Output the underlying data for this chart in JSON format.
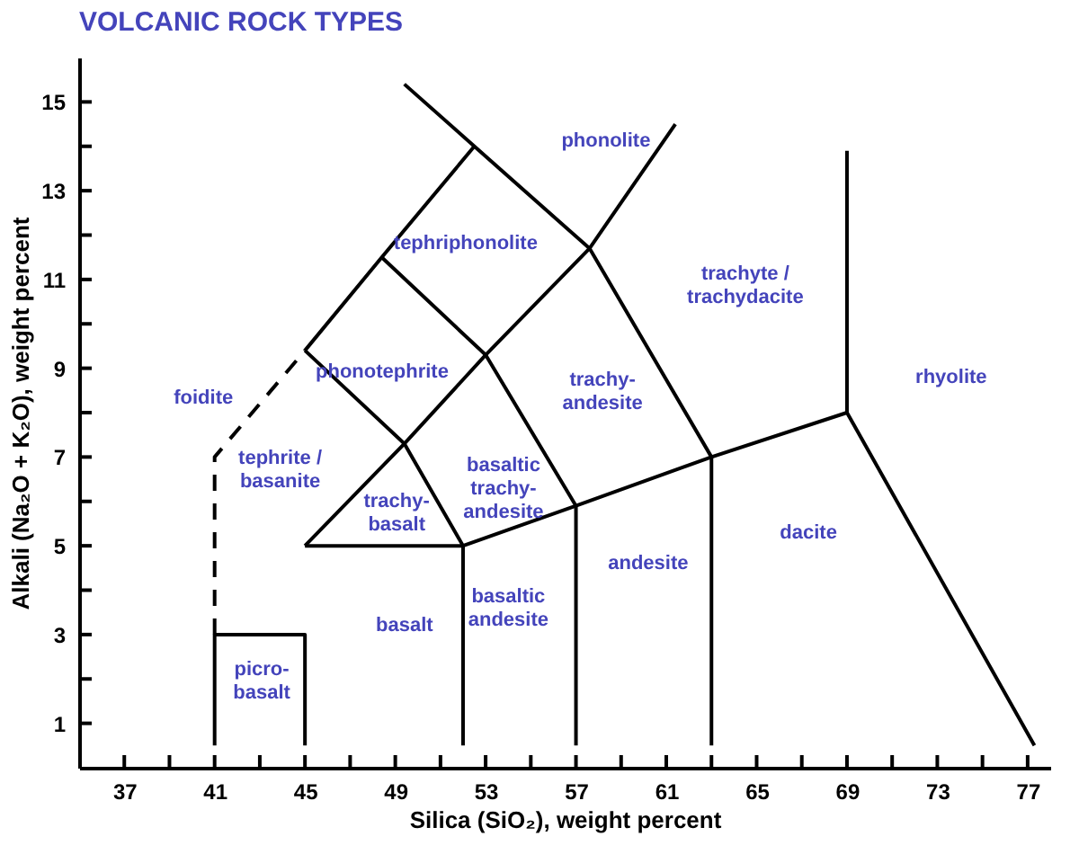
{
  "chart_data": {
    "type": "line",
    "title": "VOLCANIC ROCK TYPES",
    "xlabel": "Silica (SiO₂), weight percent",
    "ylabel": "Alkali (Na₂O + K₂O), weight percent",
    "xlim": [
      35,
      78
    ],
    "ylim": [
      0,
      16
    ],
    "xticks": [
      37,
      {
        "value": 39,
        "label": null
      },
      41,
      {
        "value": 43,
        "label": null
      },
      45,
      {
        "value": 47,
        "label": null
      },
      49,
      {
        "value": 51,
        "label": null
      },
      53,
      {
        "value": 55,
        "label": null
      },
      57,
      {
        "value": 59,
        "label": null
      },
      61,
      {
        "value": 63,
        "label": null
      },
      65,
      {
        "value": 67,
        "label": null
      },
      69,
      {
        "value": 71,
        "label": null
      },
      73,
      {
        "value": 75,
        "label": null
      },
      77
    ],
    "yticks": [
      1,
      {
        "value": 2,
        "label": null
      },
      3,
      {
        "value": 4,
        "label": null
      },
      5,
      {
        "value": 6,
        "label": null
      },
      7,
      {
        "value": 8,
        "label": null
      },
      9,
      {
        "value": 10,
        "label": null
      },
      11,
      {
        "value": 12,
        "label": null
      },
      13,
      {
        "value": 14,
        "label": null
      },
      15
    ],
    "grid": false,
    "marker": "none",
    "series": [
      {
        "color": "#000000",
        "line_style": "solid",
        "x": [
          41,
          41,
          45,
          45
        ],
        "values": [
          0.5,
          3,
          3,
          0.5
        ]
      },
      {
        "color": "#000000",
        "line_style": "dashed",
        "x": [
          41,
          41,
          45
        ],
        "values": [
          3,
          7,
          9.4
        ]
      },
      {
        "color": "#000000",
        "line_style": "solid",
        "x": [
          45,
          48.4,
          52.5
        ],
        "values": [
          9.4,
          11.5,
          14
        ]
      },
      {
        "color": "#000000",
        "line_style": "solid",
        "x": [
          49.4,
          52.5,
          57.6,
          61.4
        ],
        "values": [
          15.4,
          14,
          11.7,
          14.5
        ]
      },
      {
        "color": "#000000",
        "line_style": "solid",
        "x": [
          57.6,
          63,
          69,
          77.3
        ],
        "values": [
          11.7,
          7,
          8,
          0.5
        ]
      },
      {
        "color": "#000000",
        "line_style": "solid",
        "x": [
          69,
          69
        ],
        "values": [
          8,
          13.9
        ]
      },
      {
        "color": "#000000",
        "line_style": "solid",
        "x": [
          45,
          49.4,
          53,
          57.6
        ],
        "values": [
          5,
          7.3,
          9.3,
          11.7
        ]
      },
      {
        "color": "#000000",
        "line_style": "solid",
        "x": [
          45,
          49.4,
          52
        ],
        "values": [
          9.4,
          7.3,
          5
        ]
      },
      {
        "color": "#000000",
        "line_style": "solid",
        "x": [
          48.4,
          53,
          57,
          57
        ],
        "values": [
          11.5,
          9.3,
          5.9,
          0.5
        ]
      },
      {
        "color": "#000000",
        "line_style": "solid",
        "x": [
          45,
          52,
          52
        ],
        "values": [
          5,
          5,
          0.5
        ]
      },
      {
        "color": "#000000",
        "line_style": "solid",
        "x": [
          52,
          57,
          63,
          63
        ],
        "values": [
          5,
          5.9,
          7,
          0.5
        ]
      }
    ],
    "annotations": [
      "foidite",
      "tephrite /\nbasanite",
      "trachy-\nbasalt",
      "basalt",
      "picro-\nbasalt",
      "basaltic\nandesite",
      "basaltic\ntrachy-\nandesite",
      "phonotephrite",
      "tephriphonolite",
      "phonolite",
      "trachy-\nandesite",
      "trachyte /\ntrachydacite",
      "andesite",
      "dacite",
      "rhyolite"
    ]
  }
}
